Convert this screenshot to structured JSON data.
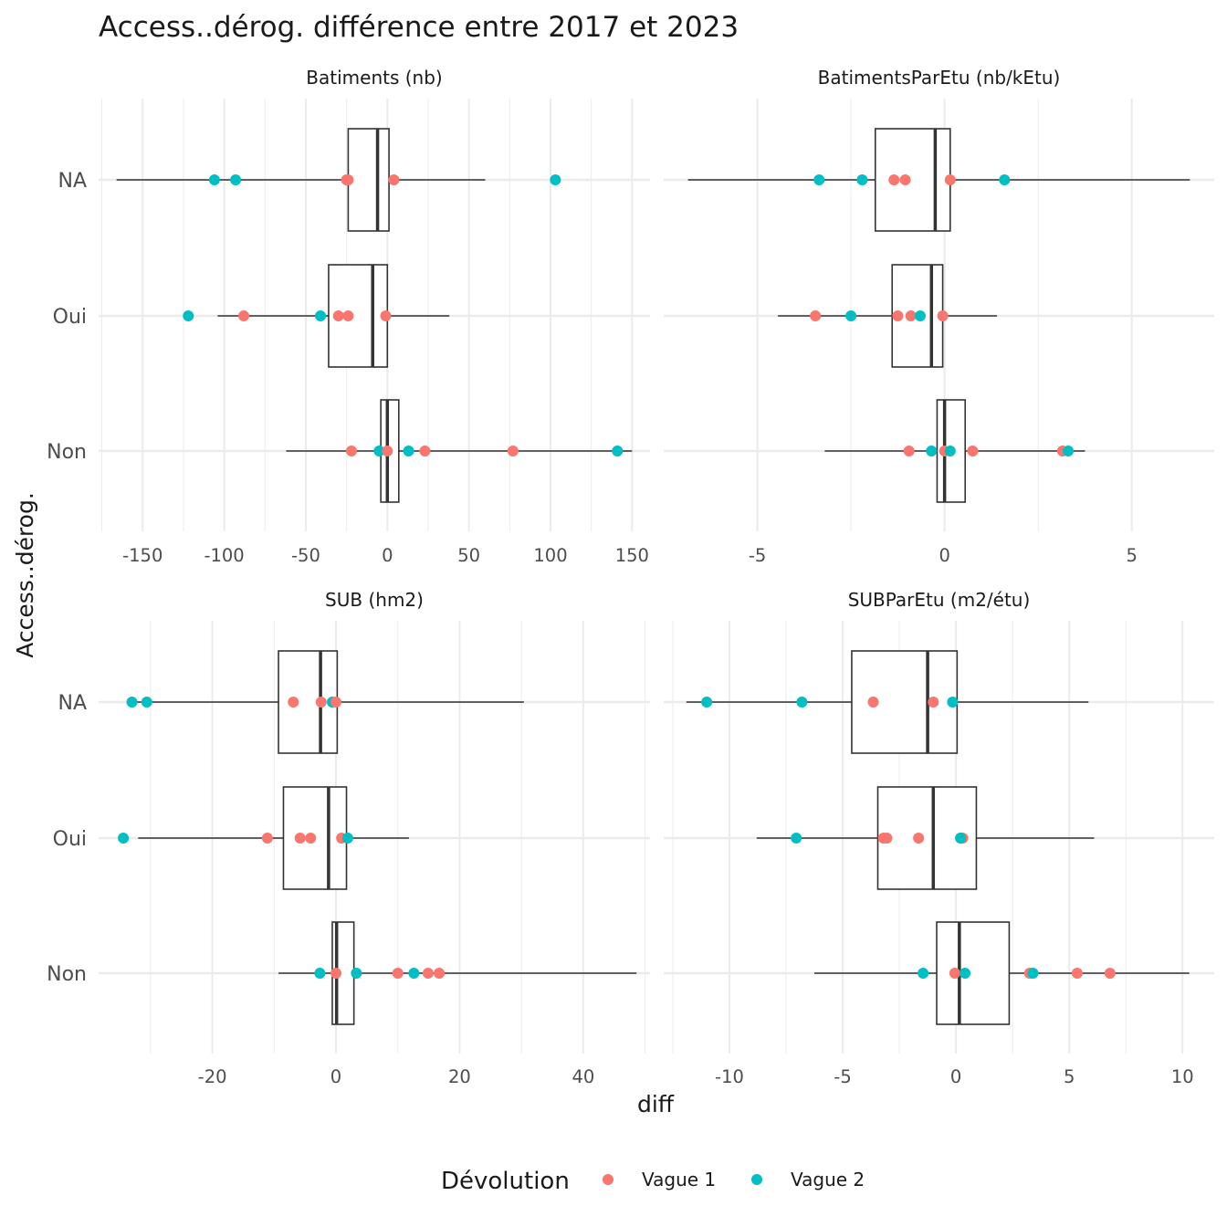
{
  "chart_data": {
    "type": "boxplot",
    "title": "Access..dérog. différence entre 2017 et 2023",
    "xlabel": "diff",
    "ylabel": "Access..dérog.",
    "categories": [
      "NA",
      "Oui",
      "Non"
    ],
    "legend": {
      "title": "Dévolution",
      "position": "bottom",
      "entries": [
        {
          "name": "Vague 1",
          "color": "#F8766D"
        },
        {
          "name": "Vague 2",
          "color": "#00BFC4"
        }
      ]
    },
    "colors": {
      "Vague 1": "#F8766D",
      "Vague 2": "#00BFC4",
      "grid": "#ebebeb",
      "box": "#333333"
    },
    "panels": [
      {
        "strip": "Batiments (nb)",
        "xlim": [
          -177,
          161
        ],
        "xticks": [
          -150,
          -100,
          -50,
          0,
          50,
          100,
          150
        ],
        "xticklabels": [
          "-150",
          "-100",
          "-50",
          "0",
          "50",
          "100",
          "150"
        ],
        "boxes": [
          {
            "category": "NA",
            "whisker_low": -166,
            "q1": -24,
            "median": -6,
            "q3": 1,
            "whisker_high": 60
          },
          {
            "category": "Oui",
            "whisker_low": -104,
            "q1": -36,
            "median": -9,
            "q3": 0,
            "whisker_high": 38
          },
          {
            "category": "Non",
            "whisker_low": -62,
            "q1": -4,
            "median": 0,
            "q3": 7,
            "whisker_high": 150
          }
        ],
        "points": [
          {
            "category": "NA",
            "group": "Vague 2",
            "x": -106
          },
          {
            "category": "NA",
            "group": "Vague 2",
            "x": -93
          },
          {
            "category": "NA",
            "group": "Vague 1",
            "x": -25
          },
          {
            "category": "NA",
            "group": "Vague 1",
            "x": -24
          },
          {
            "category": "NA",
            "group": "Vague 1",
            "x": 4
          },
          {
            "category": "NA",
            "group": "Vague 2",
            "x": 103
          },
          {
            "category": "Oui",
            "group": "Vague 2",
            "x": -122
          },
          {
            "category": "Oui",
            "group": "Vague 1",
            "x": -88
          },
          {
            "category": "Oui",
            "group": "Vague 2",
            "x": -41
          },
          {
            "category": "Oui",
            "group": "Vague 1",
            "x": -30
          },
          {
            "category": "Oui",
            "group": "Vague 1",
            "x": -24
          },
          {
            "category": "Oui",
            "group": "Vague 1",
            "x": -1
          },
          {
            "category": "Non",
            "group": "Vague 1",
            "x": -22
          },
          {
            "category": "Non",
            "group": "Vague 2",
            "x": -5
          },
          {
            "category": "Non",
            "group": "Vague 1",
            "x": 0
          },
          {
            "category": "Non",
            "group": "Vague 2",
            "x": 13
          },
          {
            "category": "Non",
            "group": "Vague 1",
            "x": 23
          },
          {
            "category": "Non",
            "group": "Vague 1",
            "x": 77
          },
          {
            "category": "Non",
            "group": "Vague 2",
            "x": 141
          }
        ]
      },
      {
        "strip": "BatimentsParEtu (nb/kEtu)",
        "xlim": [
          -7.5,
          7.2
        ],
        "xticks": [
          -5,
          0,
          5
        ],
        "xticklabels": [
          "-5",
          "0",
          "5"
        ],
        "boxes": [
          {
            "category": "NA",
            "whisker_low": -6.85,
            "q1": -1.85,
            "median": -0.25,
            "q3": 0.15,
            "whisker_high": 6.55
          },
          {
            "category": "Oui",
            "whisker_low": -4.45,
            "q1": -1.4,
            "median": -0.35,
            "q3": -0.05,
            "whisker_high": 1.4
          },
          {
            "category": "Non",
            "whisker_low": -3.2,
            "q1": -0.2,
            "median": 0,
            "q3": 0.55,
            "whisker_high": 3.75
          }
        ],
        "points": [
          {
            "category": "NA",
            "group": "Vague 2",
            "x": -3.35
          },
          {
            "category": "NA",
            "group": "Vague 2",
            "x": -2.2
          },
          {
            "category": "NA",
            "group": "Vague 1",
            "x": -1.35
          },
          {
            "category": "NA",
            "group": "Vague 1",
            "x": -1.05
          },
          {
            "category": "NA",
            "group": "Vague 1",
            "x": 0.15
          },
          {
            "category": "NA",
            "group": "Vague 2",
            "x": 1.6
          },
          {
            "category": "Oui",
            "group": "Vague 1",
            "x": -3.45
          },
          {
            "category": "Oui",
            "group": "Vague 2",
            "x": -2.5
          },
          {
            "category": "Oui",
            "group": "Vague 1",
            "x": -1.25
          },
          {
            "category": "Oui",
            "group": "Vague 1",
            "x": -0.9
          },
          {
            "category": "Oui",
            "group": "Vague 2",
            "x": -0.65
          },
          {
            "category": "Oui",
            "group": "Vague 1",
            "x": -0.05
          },
          {
            "category": "Non",
            "group": "Vague 1",
            "x": -0.95
          },
          {
            "category": "Non",
            "group": "Vague 2",
            "x": -0.35
          },
          {
            "category": "Non",
            "group": "Vague 1",
            "x": 0
          },
          {
            "category": "Non",
            "group": "Vague 2",
            "x": 0.15
          },
          {
            "category": "Non",
            "group": "Vague 1",
            "x": 0.75
          },
          {
            "category": "Non",
            "group": "Vague 1",
            "x": 3.15
          },
          {
            "category": "Non",
            "group": "Vague 2",
            "x": 3.3
          }
        ]
      },
      {
        "strip": "SUB (hm2)",
        "xlim": [
          -38.4,
          50.8
        ],
        "xticks": [
          -20,
          0,
          20,
          40
        ],
        "xticklabels": [
          "-20",
          "0",
          "20",
          "40"
        ],
        "boxes": [
          {
            "category": "NA",
            "whisker_low": -33,
            "q1": -9.3,
            "median": -2.5,
            "q3": 0.2,
            "whisker_high": 30.4
          },
          {
            "category": "Oui",
            "whisker_low": -32,
            "q1": -8.5,
            "median": -1.2,
            "q3": 1.7,
            "whisker_high": 11.8
          },
          {
            "category": "Non",
            "whisker_low": -9.3,
            "q1": -0.6,
            "median": 0.1,
            "q3": 2.9,
            "whisker_high": 48.6
          }
        ],
        "points": [
          {
            "category": "NA",
            "group": "Vague 2",
            "x": -33
          },
          {
            "category": "NA",
            "group": "Vague 2",
            "x": -30.6
          },
          {
            "category": "NA",
            "group": "Vague 1",
            "x": -6.9
          },
          {
            "category": "NA",
            "group": "Vague 1",
            "x": -2.4
          },
          {
            "category": "NA",
            "group": "Vague 2",
            "x": -0.6
          },
          {
            "category": "NA",
            "group": "Vague 1",
            "x": 0
          },
          {
            "category": "Oui",
            "group": "Vague 2",
            "x": -34.4
          },
          {
            "category": "Oui",
            "group": "Vague 1",
            "x": -11.1
          },
          {
            "category": "Oui",
            "group": "Vague 1",
            "x": -5.8
          },
          {
            "category": "Oui",
            "group": "Vague 1",
            "x": -4.1
          },
          {
            "category": "Oui",
            "group": "Vague 1",
            "x": 0.9
          },
          {
            "category": "Oui",
            "group": "Vague 2",
            "x": 1.9
          },
          {
            "category": "Non",
            "group": "Vague 2",
            "x": -2.6
          },
          {
            "category": "Non",
            "group": "Vague 1",
            "x": 0
          },
          {
            "category": "Non",
            "group": "Vague 2",
            "x": 3.3
          },
          {
            "category": "Non",
            "group": "Vague 1",
            "x": 10
          },
          {
            "category": "Non",
            "group": "Vague 2",
            "x": 12.6
          },
          {
            "category": "Non",
            "group": "Vague 1",
            "x": 14.9
          },
          {
            "category": "Non",
            "group": "Vague 1",
            "x": 16.7
          }
        ]
      },
      {
        "strip": "SUBParEtu (m2/étu)",
        "xlim": [
          -12.9,
          11.4
        ],
        "xticks": [
          -10,
          -5,
          0,
          5,
          10
        ],
        "xticklabels": [
          "-10",
          "-5",
          "0",
          "5",
          "10"
        ],
        "boxes": [
          {
            "category": "NA",
            "whisker_low": -11.9,
            "q1": -4.6,
            "median": -1.25,
            "q3": 0.05,
            "whisker_high": 5.85
          },
          {
            "category": "Oui",
            "whisker_low": -8.8,
            "q1": -3.45,
            "median": -1.0,
            "q3": 0.9,
            "whisker_high": 6.1
          },
          {
            "category": "Non",
            "whisker_low": -6.25,
            "q1": -0.85,
            "median": 0.15,
            "q3": 2.35,
            "whisker_high": 10.3
          }
        ],
        "points": [
          {
            "category": "NA",
            "group": "Vague 2",
            "x": -11.0
          },
          {
            "category": "NA",
            "group": "Vague 2",
            "x": -6.8
          },
          {
            "category": "NA",
            "group": "Vague 1",
            "x": -3.65
          },
          {
            "category": "NA",
            "group": "Vague 1",
            "x": -1.0
          },
          {
            "category": "NA",
            "group": "Vague 2",
            "x": -0.15
          },
          {
            "category": "Oui",
            "group": "Vague 2",
            "x": -7.05
          },
          {
            "category": "Oui",
            "group": "Vague 1",
            "x": -3.2
          },
          {
            "category": "Oui",
            "group": "Vague 1",
            "x": -3.05
          },
          {
            "category": "Oui",
            "group": "Vague 1",
            "x": -1.65
          },
          {
            "category": "Oui",
            "group": "Vague 1",
            "x": 0.3
          },
          {
            "category": "Oui",
            "group": "Vague 2",
            "x": 0.2
          },
          {
            "category": "Non",
            "group": "Vague 2",
            "x": -1.45
          },
          {
            "category": "Non",
            "group": "Vague 1",
            "x": -0.05
          },
          {
            "category": "Non",
            "group": "Vague 2",
            "x": 0.4
          },
          {
            "category": "Non",
            "group": "Vague 1",
            "x": 3.25
          },
          {
            "category": "Non",
            "group": "Vague 2",
            "x": 3.4
          },
          {
            "category": "Non",
            "group": "Vague 1",
            "x": 5.35
          },
          {
            "category": "Non",
            "group": "Vague 1",
            "x": 6.8
          }
        ]
      }
    ]
  }
}
